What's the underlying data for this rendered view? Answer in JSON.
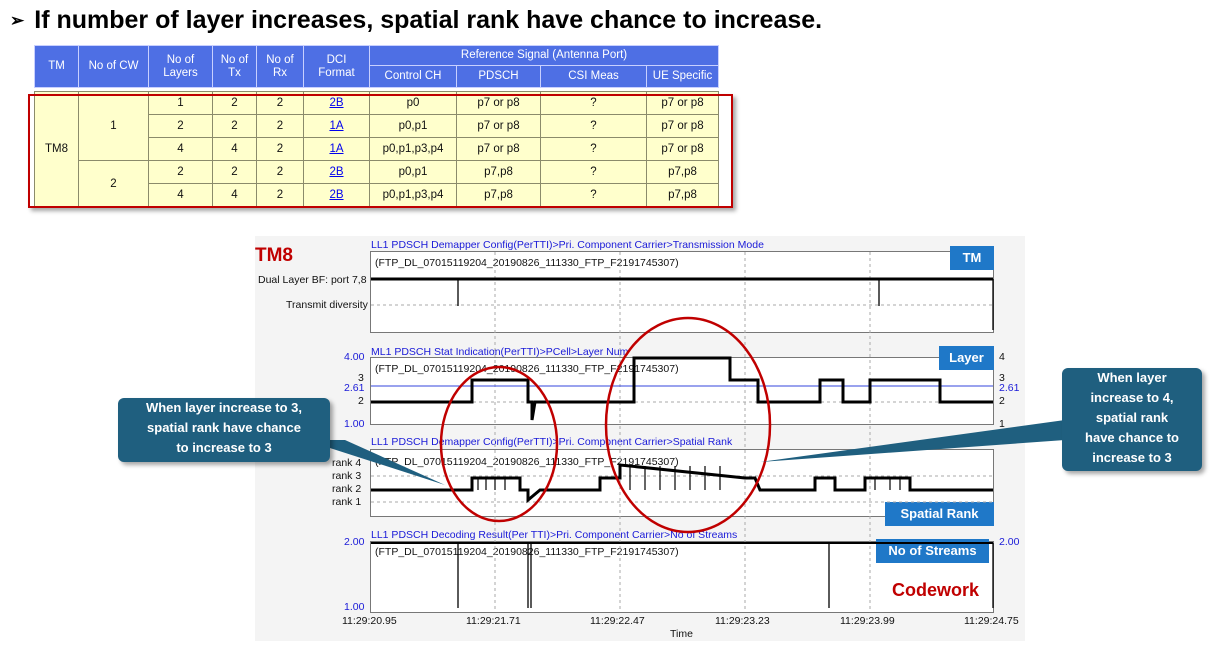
{
  "headline": {
    "bullet": "➢",
    "text": "If number of layer increases, spatial rank have chance to increase."
  },
  "table": {
    "headers": {
      "tm": "TM",
      "cw": "No of CW",
      "layers": [
        "No of",
        "Layers"
      ],
      "tx": [
        "No of",
        "Tx"
      ],
      "rx": [
        "No of",
        "Rx"
      ],
      "dci": [
        "DCI",
        "Format"
      ],
      "refsig": "Reference Signal (Antenna Port)",
      "control": "Control CH",
      "pdsch": "PDSCH",
      "csi": "CSI Meas",
      "ue": "UE Specific"
    },
    "tm": "TM8",
    "cw": [
      "1",
      "2"
    ],
    "rows": [
      {
        "layers": "1",
        "tx": "2",
        "rx": "2",
        "dci": "2B",
        "control": "p0",
        "pdsch": "p7 or p8",
        "csi": "?",
        "ue": "p7 or p8"
      },
      {
        "layers": "2",
        "tx": "2",
        "rx": "2",
        "dci": "1A",
        "control": "p0,p1",
        "pdsch": "p7 or p8",
        "csi": "?",
        "ue": "p7 or p8"
      },
      {
        "layers": "4",
        "tx": "4",
        "rx": "2",
        "dci": "1A",
        "control": "p0,p1,p3,p4",
        "pdsch": "p7 or p8",
        "csi": "?",
        "ue": "p7 or p8"
      },
      {
        "layers": "2",
        "tx": "2",
        "rx": "2",
        "dci": "2B",
        "control": "p0,p1",
        "pdsch": "p7,p8",
        "csi": "?",
        "ue": "p7,p8"
      },
      {
        "layers": "4",
        "tx": "4",
        "rx": "2",
        "dci": "2B",
        "control": "p0,p1,p3,p4",
        "pdsch": "p7,p8",
        "csi": "?",
        "ue": "p7,p8"
      }
    ]
  },
  "charts": {
    "tm8_label": "TM8",
    "file": "(FTP_DL_07015119204_20190826_111330_FTP_F2191745307)",
    "tm": {
      "title": "LL1 PDSCH Demapper Config(PerTTI)>Pri. Component Carrier>Transmission Mode",
      "tag": "TM",
      "y1": "Dual Layer BF: port 7,8",
      "y2": "Transmit diversity"
    },
    "layer": {
      "title": "ML1 PDSCH Stat Indication(PerTTI)>PCell>Layer Num",
      "tag": "Layer",
      "ytop": "4.00",
      "y3": "3",
      "ymean": "2.61",
      "y2": "2",
      "ybot": "1.00",
      "r4": "4",
      "r3": "3",
      "rmean": "2.61",
      "r2": "2",
      "r1": "1"
    },
    "rank": {
      "title": "LL1 PDSCH Demapper Config(PerTTI)>Pri. Component Carrier>Spatial Rank",
      "tag": "Spatial Rank",
      "y4": "rank 4",
      "y3": "rank 3",
      "y2": "rank 2",
      "y1": "rank 1"
    },
    "streams": {
      "title": "LL1 PDSCH Decoding Result(Per TTI)>Pri. Component Carrier>No of Streams",
      "tag": "No of Streams",
      "ytop": "2.00",
      "ybot": "1.00",
      "rtop": "2.00"
    },
    "codework": "Codework",
    "x_ticks": [
      "11:29:20.95",
      "11:29:21.71",
      "11:29:22.47",
      "11:29:23.23",
      "11:29:23.99",
      "11:29:24.75"
    ],
    "x_label": "Time"
  },
  "callouts": {
    "left": [
      "When layer increase to 3,",
      "spatial rank have chance",
      "to increase to 3"
    ],
    "right": [
      "When layer",
      "increase to 4,",
      "spatial rank",
      "have chance to",
      "increase to 3"
    ]
  },
  "colors": {
    "header_blue": "#4e6fe4",
    "cell_yellow": "#ffffcc",
    "red": "#c00000",
    "tag_blue": "#1f78c8",
    "callout": "#1f5f7f",
    "link": "#0000ee"
  }
}
